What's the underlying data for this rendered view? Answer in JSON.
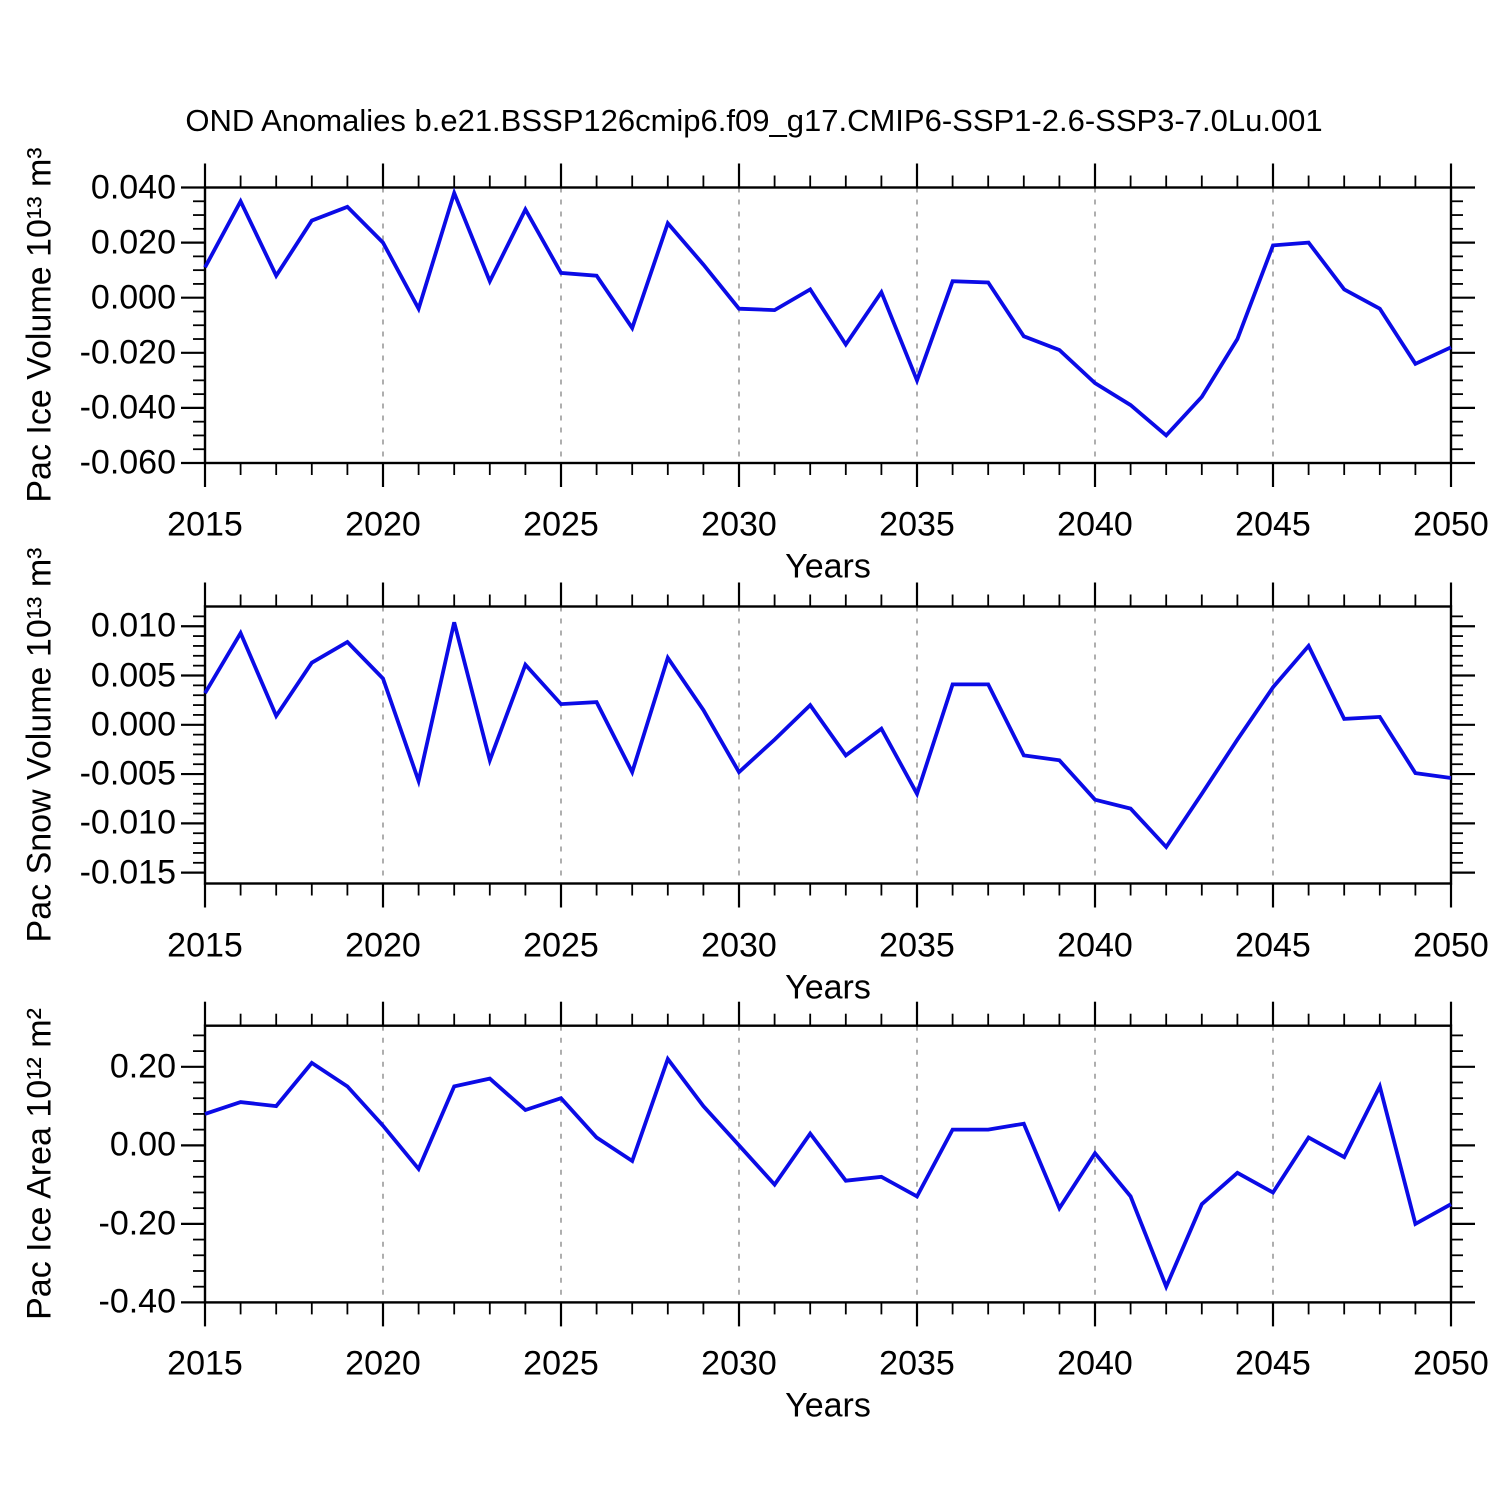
{
  "page": {
    "title": "OND Anomalies b.e21.BSSP126cmip6.f09_g17.CMIP6-SSP1-2.6-SSP3-7.0Lu.001",
    "background": "#ffffff"
  },
  "styles": {
    "line_color": "#0b0be6",
    "axis_color": "#000000",
    "grid_color": "#9b9b9b",
    "text_color": "#000000"
  },
  "chart_data": [
    {
      "type": "line",
      "panel": "pac-ice-volume",
      "title": "",
      "ylabel": "Pac Ice Volume 10¹³ m³",
      "xlabel": "Years",
      "xlim": [
        2015,
        2050
      ],
      "ylim": [
        -0.06,
        0.04
      ],
      "x_ticks": [
        2015,
        2020,
        2025,
        2030,
        2035,
        2040,
        2045,
        2050
      ],
      "x_tick_labels": [
        "2015",
        "2020",
        "2025",
        "2030",
        "2035",
        "2040",
        "2045",
        "2050"
      ],
      "x_minor_step": 1,
      "grid_x": [
        2020,
        2025,
        2030,
        2035,
        2040,
        2045
      ],
      "y_tick_values": [
        0.04,
        0.02,
        0.0,
        -0.02,
        -0.04,
        -0.06
      ],
      "y_tick_labels": [
        "0.040",
        "0.020",
        "0.000",
        "-0.020",
        "-0.040",
        "-0.060"
      ],
      "y_minor_step": 0.005,
      "x": [
        2015,
        2016,
        2017,
        2018,
        2019,
        2020,
        2021,
        2022,
        2023,
        2024,
        2025,
        2026,
        2027,
        2028,
        2029,
        2030,
        2031,
        2032,
        2033,
        2034,
        2035,
        2036,
        2037,
        2038,
        2039,
        2040,
        2041,
        2042,
        2043,
        2044,
        2045,
        2046,
        2047,
        2048,
        2049,
        2050
      ],
      "values": [
        0.011,
        0.035,
        0.008,
        0.028,
        0.033,
        0.02,
        -0.004,
        0.038,
        0.006,
        0.032,
        0.009,
        0.008,
        -0.011,
        0.027,
        0.012,
        -0.004,
        -0.0045,
        0.003,
        -0.017,
        0.002,
        -0.03,
        0.006,
        0.0055,
        -0.014,
        -0.019,
        -0.031,
        -0.039,
        -0.05,
        -0.036,
        -0.015,
        0.019,
        0.02,
        0.003,
        -0.004,
        -0.024,
        -0.018
      ]
    },
    {
      "type": "line",
      "panel": "pac-snow-volume",
      "title": "",
      "ylabel": "Pac Snow Volume 10¹³ m³",
      "xlabel": "Years",
      "xlim": [
        2015,
        2050
      ],
      "ylim": [
        -0.0161,
        0.012
      ],
      "x_ticks": [
        2015,
        2020,
        2025,
        2030,
        2035,
        2040,
        2045,
        2050
      ],
      "x_tick_labels": [
        "2015",
        "2020",
        "2025",
        "2030",
        "2035",
        "2040",
        "2045",
        "2050"
      ],
      "x_minor_step": 1,
      "grid_x": [
        2020,
        2025,
        2030,
        2035,
        2040,
        2045
      ],
      "y_tick_values": [
        0.01,
        0.005,
        0.0,
        -0.005,
        -0.01,
        -0.015
      ],
      "y_tick_labels": [
        "0.010",
        "0.005",
        "0.000",
        "-0.005",
        "-0.010",
        "-0.015"
      ],
      "y_minor_step": 0.001,
      "x": [
        2015,
        2016,
        2017,
        2018,
        2019,
        2020,
        2021,
        2022,
        2023,
        2024,
        2025,
        2026,
        2027,
        2028,
        2029,
        2030,
        2031,
        2032,
        2033,
        2034,
        2035,
        2036,
        2037,
        2038,
        2039,
        2040,
        2041,
        2042,
        2043,
        2044,
        2045,
        2046,
        2047,
        2048,
        2049,
        2050
      ],
      "values": [
        0.0032,
        0.0093,
        0.0009,
        0.0063,
        0.0084,
        0.0047,
        -0.0057,
        0.0104,
        -0.0036,
        0.0061,
        0.0021,
        0.0023,
        -0.0048,
        0.0068,
        0.0015,
        -0.0048,
        -0.0015,
        0.002,
        -0.0031,
        -0.0004,
        -0.007,
        0.0041,
        0.0041,
        -0.0031,
        -0.0036,
        -0.0076,
        -0.0085,
        -0.0124,
        -0.007,
        -0.0015,
        0.0038,
        0.008,
        0.0006,
        0.0008,
        -0.0049,
        -0.0054
      ]
    },
    {
      "type": "line",
      "panel": "pac-ice-area",
      "title": "",
      "ylabel": "Pac Ice Area 10¹² m²",
      "xlabel": "Years",
      "xlim": [
        2015,
        2050
      ],
      "ylim": [
        -0.4,
        0.3047
      ],
      "x_ticks": [
        2015,
        2020,
        2025,
        2030,
        2035,
        2040,
        2045,
        2050
      ],
      "x_tick_labels": [
        "2015",
        "2020",
        "2025",
        "2030",
        "2035",
        "2040",
        "2045",
        "2050"
      ],
      "x_minor_step": 1,
      "grid_x": [
        2020,
        2025,
        2030,
        2035,
        2040,
        2045
      ],
      "y_tick_values": [
        0.2,
        0.0,
        -0.2,
        -0.4
      ],
      "y_tick_labels": [
        "0.20",
        "0.00",
        "-0.20",
        "-0.40"
      ],
      "y_minor_step": 0.04,
      "x": [
        2015,
        2016,
        2017,
        2018,
        2019,
        2020,
        2021,
        2022,
        2023,
        2024,
        2025,
        2026,
        2027,
        2028,
        2029,
        2030,
        2031,
        2032,
        2033,
        2034,
        2035,
        2036,
        2037,
        2038,
        2039,
        2040,
        2041,
        2042,
        2043,
        2044,
        2045,
        2046,
        2047,
        2048,
        2049,
        2050
      ],
      "values": [
        0.08,
        0.11,
        0.1,
        0.21,
        0.15,
        0.05,
        -0.06,
        0.15,
        0.17,
        0.09,
        0.12,
        0.02,
        -0.04,
        0.22,
        0.1,
        0.0,
        -0.1,
        0.03,
        -0.09,
        -0.08,
        -0.13,
        0.04,
        0.04,
        0.055,
        -0.16,
        -0.02,
        -0.13,
        -0.36,
        -0.15,
        -0.07,
        -0.12,
        0.02,
        -0.03,
        0.15,
        -0.2,
        -0.15
      ]
    }
  ]
}
